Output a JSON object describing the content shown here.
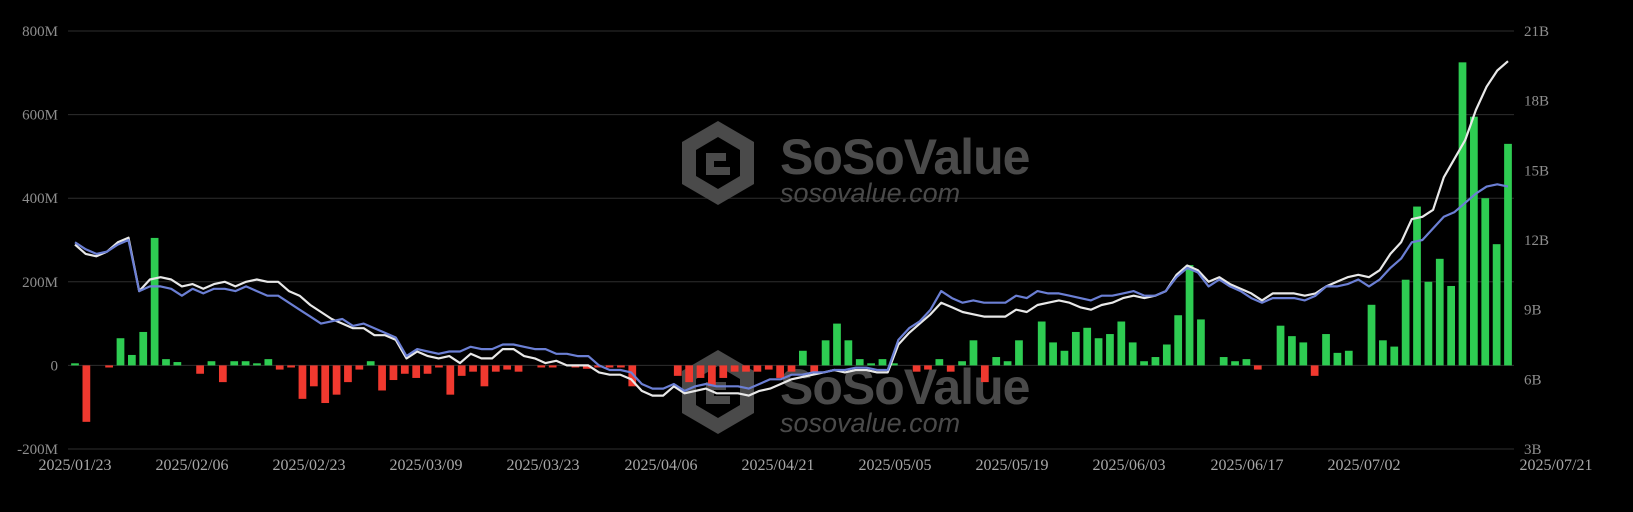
{
  "watermark": {
    "name": "SoSoValue",
    "url": "sosovalue.com"
  },
  "colors": {
    "background": "#000000",
    "inflow": "#2ecc52",
    "outflow": "#f0392f",
    "line_white": "#e8e8e8",
    "line_blue": "#6b7fd4",
    "grid": "#2e2e2e"
  },
  "chart_data": {
    "type": "bar",
    "title": "",
    "xlabel": "",
    "ylabel": "",
    "ylim": [
      -200000000,
      800000000
    ],
    "y2lim": [
      3000000000,
      21000000000
    ],
    "y_ticks": [
      "800M",
      "600M",
      "400M",
      "200M",
      "0",
      "-200M"
    ],
    "y2_ticks": [
      "21B",
      "18B",
      "15B",
      "12B",
      "9B",
      "6B",
      "3B"
    ],
    "x_ticks": [
      "2025/01/23",
      "2025/02/06",
      "2025/02/23",
      "2025/03/09",
      "2025/03/23",
      "2025/04/06",
      "2025/04/21",
      "2025/05/05",
      "2025/05/19",
      "2025/06/03",
      "2025/06/17",
      "2025/07/02",
      "2025/07/21"
    ],
    "grid": true,
    "legend": "none",
    "series": [
      {
        "axis": "left",
        "type": "bar",
        "values": [
          5,
          -135,
          0,
          -5,
          65,
          25,
          80,
          305,
          15,
          8,
          0,
          -20,
          10,
          -40,
          10,
          10,
          5,
          15,
          -10,
          -5,
          -80,
          -50,
          -90,
          -70,
          -40,
          -10,
          10,
          -60,
          -35,
          -20,
          -30,
          -20,
          -5,
          -70,
          -25,
          -15,
          -50,
          -15,
          -10,
          -15,
          0,
          -5,
          -5,
          0,
          -5,
          -8,
          -5,
          -5,
          -5,
          -50,
          0,
          0,
          0,
          -25,
          -40,
          -30,
          -50,
          -30,
          -15,
          -15,
          -15,
          -10,
          -30,
          -15,
          35,
          -20,
          60,
          100,
          60,
          15,
          5,
          15,
          5,
          0,
          -15,
          -10,
          15,
          -15,
          10,
          60,
          -40,
          20,
          10,
          60,
          0,
          105,
          55,
          35,
          80,
          90,
          65,
          75,
          105,
          55,
          10,
          20,
          50,
          120,
          240,
          110,
          0,
          20,
          10,
          15,
          -10,
          0,
          95,
          70,
          55,
          -25,
          75,
          30,
          35,
          0,
          145,
          60,
          45,
          205,
          380,
          200,
          255,
          190,
          725,
          595,
          400,
          290,
          530
        ]
      },
      {
        "axis": "right",
        "type": "line",
        "color": "#e8e8e8",
        "values": [
          11.8,
          11.4,
          11.3,
          11.5,
          11.9,
          12.1,
          9.8,
          10.3,
          10.4,
          10.3,
          10.0,
          10.1,
          9.9,
          10.1,
          10.2,
          10.0,
          10.2,
          10.3,
          10.2,
          10.2,
          9.8,
          9.6,
          9.2,
          8.9,
          8.6,
          8.4,
          8.2,
          8.2,
          7.9,
          7.9,
          7.7,
          6.9,
          7.2,
          7.0,
          6.9,
          7.0,
          6.7,
          7.1,
          6.9,
          6.9,
          7.3,
          7.3,
          7.0,
          6.9,
          6.7,
          6.8,
          6.6,
          6.6,
          6.6,
          6.3,
          6.2,
          6.2,
          6.0,
          5.5,
          5.3,
          5.3,
          5.7,
          5.4,
          5.5,
          5.6,
          5.4,
          5.4,
          5.4,
          5.3,
          5.5,
          5.6,
          5.8,
          6.0,
          6.1,
          6.2,
          6.3,
          6.4,
          6.3,
          6.4,
          6.4,
          6.3,
          6.3,
          7.5,
          8.0,
          8.4,
          8.8,
          9.3,
          9.1,
          8.9,
          8.8,
          8.7,
          8.7,
          8.7,
          9.0,
          8.9,
          9.2,
          9.3,
          9.4,
          9.3,
          9.1,
          9.0,
          9.2,
          9.3,
          9.5,
          9.6,
          9.5,
          9.6,
          9.8,
          10.5,
          10.9,
          10.7,
          10.2,
          10.4,
          10.1,
          9.9,
          9.7,
          9.4,
          9.7,
          9.7,
          9.7,
          9.6,
          9.7,
          10.0,
          10.2,
          10.4,
          10.5,
          10.4,
          10.7,
          11.4,
          11.9,
          12.9,
          13.0,
          13.3,
          14.7,
          15.5,
          16.3,
          17.6,
          18.6,
          19.3,
          19.7
        ]
      },
      {
        "axis": "right",
        "type": "line",
        "color": "#6b7fd4",
        "values": [
          11.9,
          11.6,
          11.4,
          11.5,
          11.8,
          12.0,
          9.8,
          10.0,
          10.0,
          9.9,
          9.6,
          9.9,
          9.7,
          9.9,
          9.9,
          9.8,
          10.0,
          9.8,
          9.6,
          9.6,
          9.3,
          9.0,
          8.7,
          8.4,
          8.5,
          8.6,
          8.3,
          8.4,
          8.2,
          8.0,
          7.8,
          7.0,
          7.3,
          7.2,
          7.1,
          7.2,
          7.2,
          7.4,
          7.3,
          7.3,
          7.5,
          7.5,
          7.4,
          7.3,
          7.3,
          7.1,
          7.1,
          7.0,
          7.0,
          6.6,
          6.4,
          6.4,
          6.3,
          5.8,
          5.6,
          5.6,
          5.8,
          5.5,
          5.7,
          5.8,
          5.7,
          5.7,
          5.7,
          5.6,
          5.8,
          6.0,
          6.0,
          6.2,
          6.2,
          6.3,
          6.3,
          6.4,
          6.4,
          6.5,
          6.5,
          6.4,
          6.4,
          7.7,
          8.2,
          8.5,
          9.0,
          9.8,
          9.5,
          9.3,
          9.4,
          9.3,
          9.3,
          9.3,
          9.6,
          9.5,
          9.8,
          9.7,
          9.7,
          9.6,
          9.5,
          9.4,
          9.6,
          9.6,
          9.7,
          9.8,
          9.6,
          9.6,
          9.8,
          10.4,
          10.8,
          10.6,
          10.0,
          10.3,
          10.0,
          9.8,
          9.5,
          9.3,
          9.5,
          9.5,
          9.5,
          9.4,
          9.6,
          10.0,
          10.0,
          10.1,
          10.3,
          10.0,
          10.3,
          10.8,
          11.2,
          11.9,
          12.0,
          12.5,
          13.0,
          13.2,
          13.6,
          14.0,
          14.3,
          14.4,
          14.3
        ]
      }
    ]
  }
}
